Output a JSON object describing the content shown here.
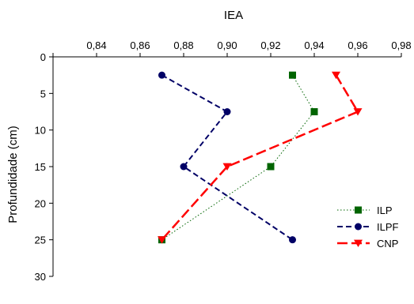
{
  "chart_data": {
    "type": "line",
    "xlabel": "IEA",
    "ylabel": "Profundidade (cm)",
    "xlim": [
      0.82,
      0.98
    ],
    "ylim": [
      0,
      30
    ],
    "y_inverted": true,
    "x_axis_position": "top",
    "xticks": [
      0.82,
      0.84,
      0.86,
      0.88,
      0.9,
      0.92,
      0.94,
      0.96,
      0.98
    ],
    "xtick_labels": [
      "",
      "0,84",
      "0,86",
      "0,88",
      "0,90",
      "0,92",
      "0,94",
      "0,96",
      "0,98"
    ],
    "yticks": [
      0,
      5,
      10,
      15,
      20,
      25,
      30
    ],
    "ytick_labels": [
      "0",
      "5",
      "10",
      "15",
      "20",
      "25",
      "30"
    ],
    "grid": false,
    "legend_position": "right",
    "series": [
      {
        "name": "ILP",
        "color": "#006400",
        "line_style": "dotted",
        "marker": "square",
        "points": [
          {
            "x": 0.93,
            "y": 2.5
          },
          {
            "x": 0.94,
            "y": 7.5
          },
          {
            "x": 0.92,
            "y": 15
          },
          {
            "x": 0.87,
            "y": 25
          }
        ]
      },
      {
        "name": "ILPF",
        "color": "#000066",
        "line_style": "dashed",
        "marker": "circle",
        "points": [
          {
            "x": 0.87,
            "y": 2.5
          },
          {
            "x": 0.9,
            "y": 7.5
          },
          {
            "x": 0.88,
            "y": 15
          },
          {
            "x": 0.93,
            "y": 25
          }
        ]
      },
      {
        "name": "CNP",
        "color": "#ff0000",
        "line_style": "long-dashed",
        "marker": "triangle-down",
        "points": [
          {
            "x": 0.95,
            "y": 2.5
          },
          {
            "x": 0.96,
            "y": 7.5
          },
          {
            "x": 0.9,
            "y": 15
          },
          {
            "x": 0.87,
            "y": 25
          }
        ]
      }
    ]
  }
}
